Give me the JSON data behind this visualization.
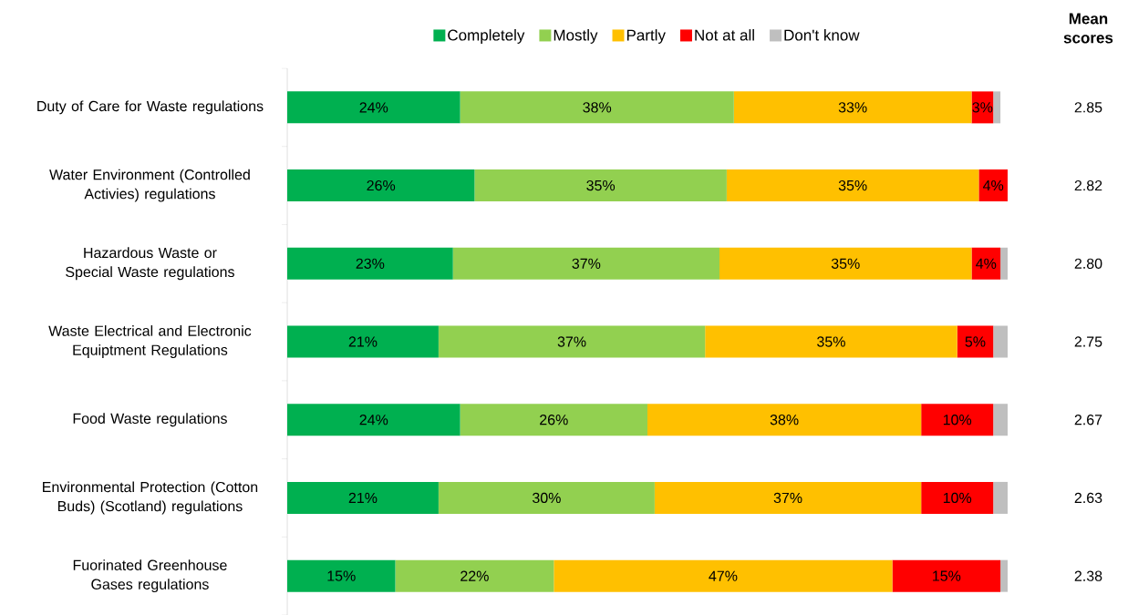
{
  "chart_data": {
    "type": "bar",
    "orientation": "horizontal",
    "stacked": true,
    "legend": "top",
    "tick_labels": "y",
    "categories": [
      "Duty of Care for Waste regulations",
      "Water Environment (Controlled Activies) regulations",
      "Hazardous Waste or Special Waste regulations",
      "Waste Electrical and Electronic Equiptment Regulations",
      "Food Waste regulations",
      "Environmental Protection (Cotton Buds) (Scotland) regulations",
      "Fuorinated Greenhouse Gases regulations"
    ],
    "series": [
      {
        "name": "Completely",
        "color": "#00b050",
        "values": [
          24,
          26,
          23,
          21,
          24,
          21,
          15
        ],
        "value_labels": [
          "24%",
          "26%",
          "23%",
          "21%",
          "24%",
          "21%",
          "15%"
        ]
      },
      {
        "name": "Mostly",
        "color": "#92d050",
        "values": [
          38,
          35,
          37,
          37,
          26,
          30,
          22
        ],
        "value_labels": [
          "38%",
          "35%",
          "37%",
          "37%",
          "26%",
          "30%",
          "22%"
        ]
      },
      {
        "name": "Partly",
        "color": "#ffc000",
        "values": [
          33,
          35,
          35,
          35,
          38,
          37,
          47
        ],
        "value_labels": [
          "33%",
          "35%",
          "35%",
          "35%",
          "38%",
          "37%",
          "47%"
        ]
      },
      {
        "name": "Not at all",
        "color": "#ff0000",
        "values": [
          3,
          4,
          4,
          5,
          10,
          10,
          15
        ],
        "value_labels": [
          "3%",
          "4%",
          "4%",
          "5%",
          "10%",
          "10%",
          "15%"
        ]
      },
      {
        "name": "Don't know",
        "color": "#bfbfbf",
        "values": [
          1,
          0,
          1,
          2,
          2,
          2,
          1
        ]
      }
    ],
    "annotations": [
      "Mean scores",
      "2.85",
      "2.82",
      "2.80",
      "2.75",
      "2.67",
      "2.63",
      "2.38"
    ]
  }
}
